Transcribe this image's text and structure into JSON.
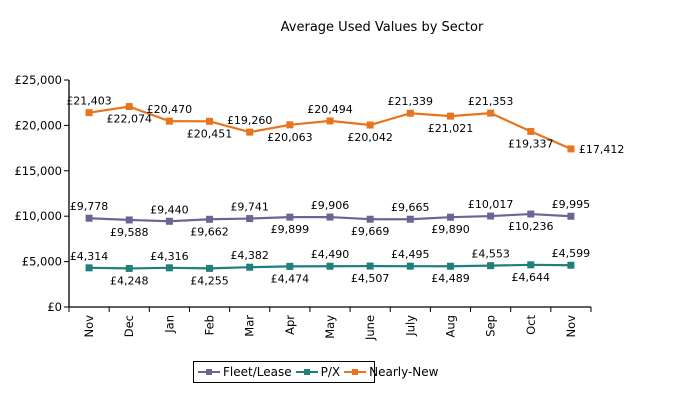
{
  "chart_data": {
    "type": "line",
    "title": "Average Used Values by Sector",
    "xlabel": "",
    "ylabel": "",
    "categories": [
      "Nov",
      "Dec",
      "Jan",
      "Feb",
      "Mar",
      "Apr",
      "May",
      "June",
      "July",
      "Aug",
      "Sep",
      "Oct",
      "Nov"
    ],
    "ylim": [
      0,
      25000
    ],
    "yticks": [
      0,
      5000,
      10000,
      15000,
      20000,
      25000
    ],
    "ytick_labels": [
      "£0",
      "£5,000",
      "£10,000",
      "£15,000",
      "£20,000",
      "£25,000"
    ],
    "grid": false,
    "legend_position": "bottom",
    "series": [
      {
        "name": "Fleet/Lease",
        "color": "#6B6594",
        "values": [
          9778,
          9588,
          9440,
          9662,
          9741,
          9899,
          9906,
          9669,
          9665,
          9890,
          10017,
          10236,
          9995
        ],
        "labels": [
          "£9,778",
          "£9,588",
          "£9,440",
          "£9,662",
          "£9,741",
          "£9,899",
          "£9,906",
          "£9,669",
          "£9,665",
          "£9,890",
          "£10,017",
          "£10,236",
          "£9,995"
        ]
      },
      {
        "name": "P/X",
        "color": "#1F7F7A",
        "values": [
          4314,
          4248,
          4316,
          4255,
          4382,
          4474,
          4490,
          4507,
          4495,
          4489,
          4553,
          4644,
          4599
        ],
        "labels": [
          "£4,314",
          "£4,248",
          "£4,316",
          "£4,255",
          "£4,382",
          "£4,474",
          "£4,490",
          "£4,507",
          "£4,495",
          "£4,489",
          "£4,553",
          "£4,644",
          "£4,599"
        ]
      },
      {
        "name": "Nearly-New",
        "color": "#E8741E",
        "values": [
          21403,
          22074,
          20470,
          20451,
          19260,
          20063,
          20494,
          20042,
          21339,
          21021,
          21353,
          19337,
          17412
        ],
        "labels": [
          "£21,403",
          "£22,074",
          "£20,470",
          "£20,451",
          "£19,260",
          "£20,063",
          "£20,494",
          "£20,042",
          "£21,339",
          "£21,021",
          "£21,353",
          "£19,337",
          "£17,412"
        ]
      }
    ]
  }
}
